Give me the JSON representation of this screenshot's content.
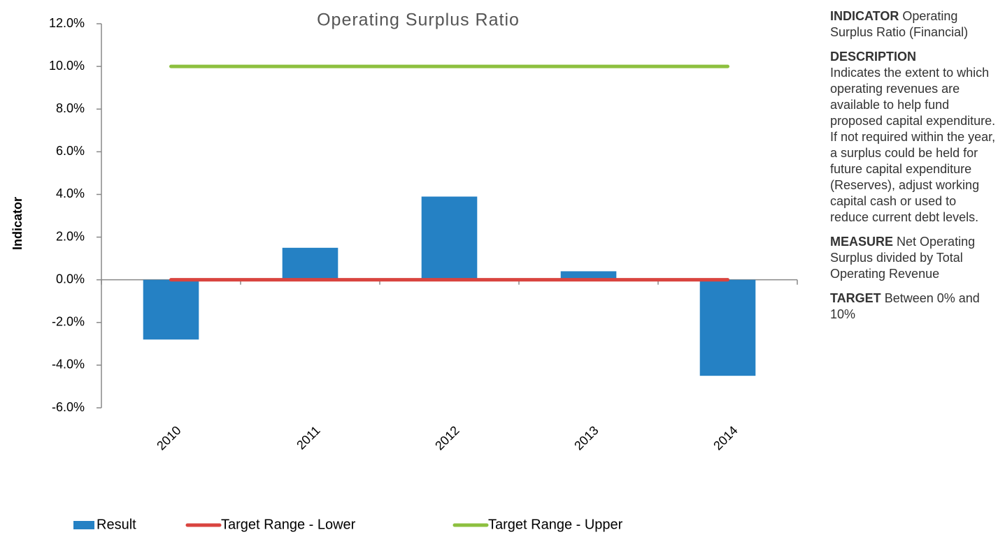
{
  "chart_data": {
    "type": "bar",
    "title": "Operating Surplus Ratio",
    "y_label": "Indicator",
    "categories": [
      "2010",
      "2011",
      "2012",
      "2013",
      "2014"
    ],
    "series": [
      {
        "name": "Result",
        "type": "bar",
        "color": "#2581c4",
        "values": [
          -2.8,
          1.5,
          3.9,
          0.4,
          -4.5
        ]
      },
      {
        "name": "Target Range - Lower",
        "type": "line",
        "color": "#d9443f",
        "values": [
          0,
          0,
          0,
          0,
          0
        ]
      },
      {
        "name": "Target Range - Upper",
        "type": "line",
        "color": "#8dc03f",
        "values": [
          10,
          10,
          10,
          10,
          10
        ]
      }
    ],
    "ylim": [
      -6,
      12
    ],
    "yticks": [
      {
        "value": -6,
        "label": "-6.0%"
      },
      {
        "value": -4,
        "label": "-4.0%"
      },
      {
        "value": -2,
        "label": "-2.0%"
      },
      {
        "value": 0,
        "label": "0.0%"
      },
      {
        "value": 2,
        "label": "2.0%"
      },
      {
        "value": 4,
        "label": "4.0%"
      },
      {
        "value": 6,
        "label": "6.0%"
      },
      {
        "value": 8,
        "label": "8.0%"
      },
      {
        "value": 10,
        "label": "10.0%"
      },
      {
        "value": 12,
        "label": "12.0%"
      }
    ],
    "grid": false,
    "legend": "bottom"
  },
  "panel": [
    {
      "heading": "INDICATOR",
      "text": "Operating Surplus Ratio (Financial)"
    },
    {
      "heading": "DESCRIPTION",
      "text": "Indicates the extent to which operating revenues are available to help fund proposed capital expenditure. If not required within the year, a surplus could be held for future capital expenditure (Reserves), adjust working capital cash or used to reduce current debt levels."
    },
    {
      "heading": "MEASURE",
      "text": "Net Operating Surplus divided by Total Operating Revenue"
    },
    {
      "heading": "TARGET",
      "text": "Between 0% and 10%"
    }
  ]
}
